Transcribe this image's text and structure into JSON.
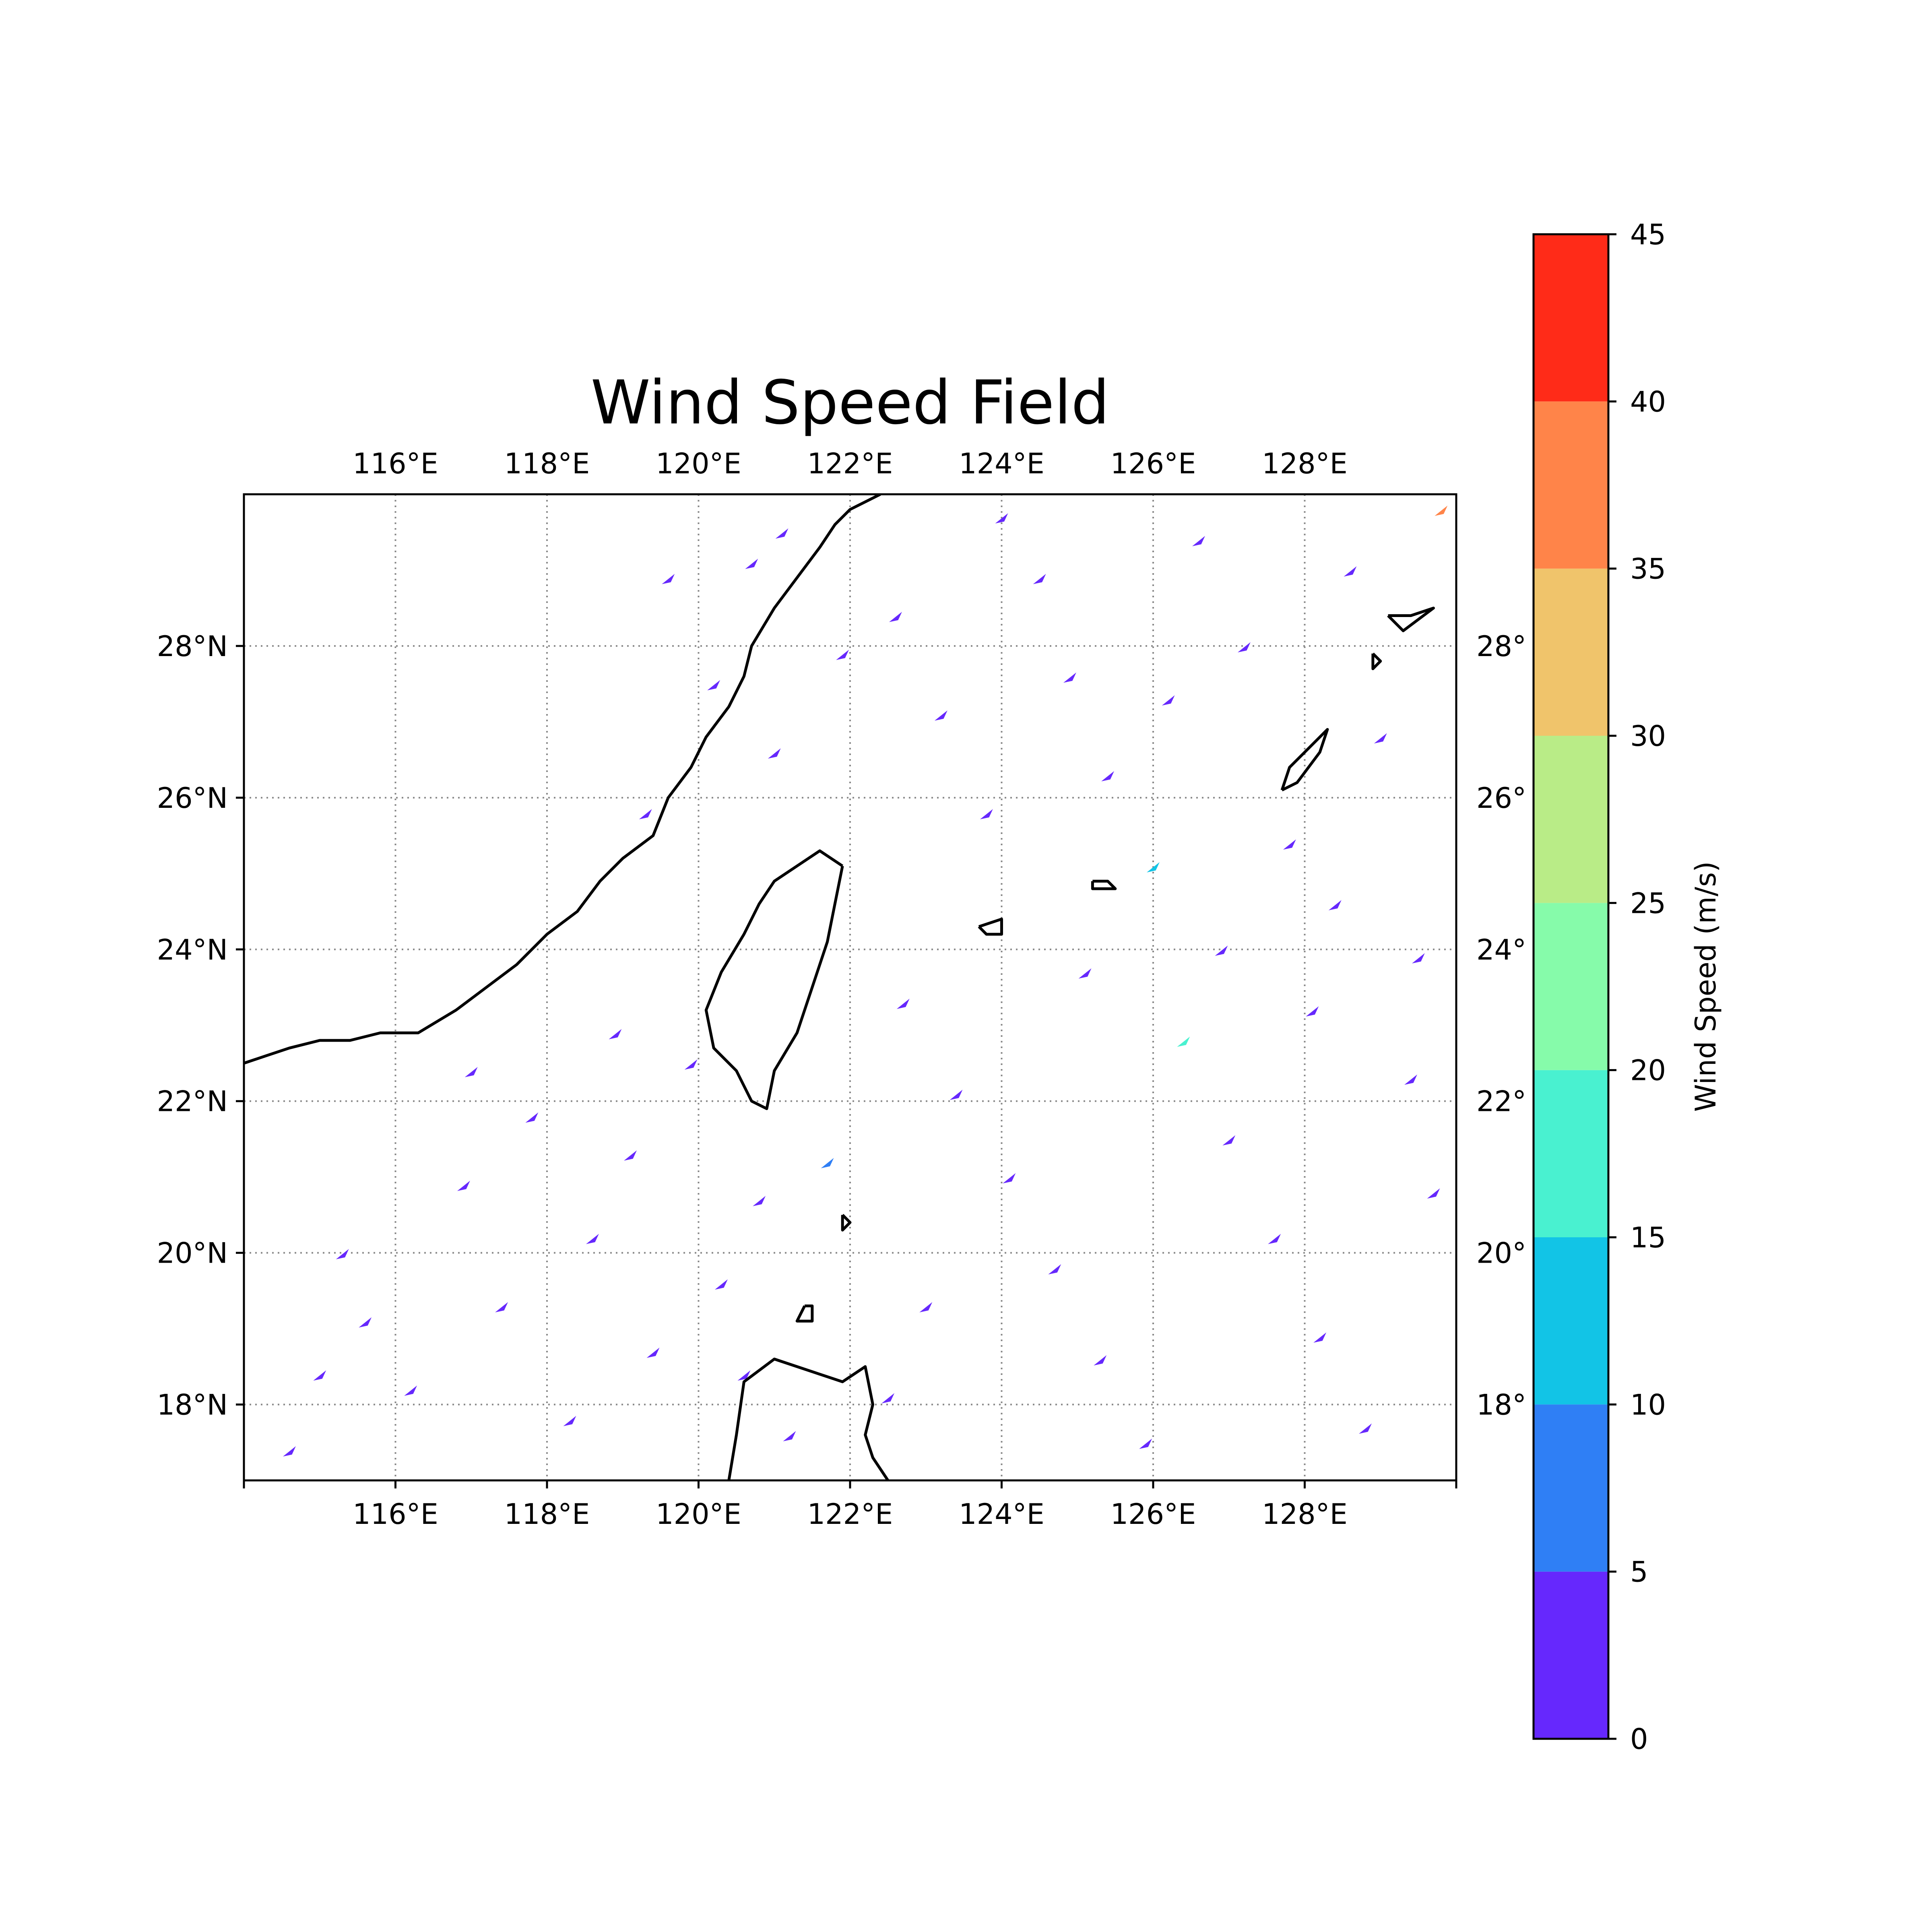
{
  "title": "Wind Speed Field",
  "map": {
    "extent": {
      "lon": [
        114,
        130
      ],
      "lat": [
        17,
        30
      ]
    },
    "lon_ticks": [
      {
        "value": 116,
        "label": "116°E"
      },
      {
        "value": 118,
        "label": "118°E"
      },
      {
        "value": 120,
        "label": "120°E"
      },
      {
        "value": 122,
        "label": "122°E"
      },
      {
        "value": 124,
        "label": "124°E"
      },
      {
        "value": 126,
        "label": "126°E"
      },
      {
        "value": 128,
        "label": "128°E"
      }
    ],
    "lat_ticks": [
      {
        "value": 18,
        "label": "18°N"
      },
      {
        "value": 20,
        "label": "20°N"
      },
      {
        "value": 22,
        "label": "22°N"
      },
      {
        "value": 24,
        "label": "24°N"
      },
      {
        "value": 26,
        "label": "26°N"
      },
      {
        "value": 28,
        "label": "28°N"
      }
    ],
    "lat_ticks_right": [
      {
        "value": 18,
        "label": "18°"
      },
      {
        "value": 20,
        "label": "20°"
      },
      {
        "value": 22,
        "label": "22°"
      },
      {
        "value": 24,
        "label": "24°"
      },
      {
        "value": 26,
        "label": "26°"
      },
      {
        "value": 28,
        "label": "28°"
      }
    ],
    "gridlines": "dotted",
    "coastline_color": "#000000",
    "field_dominant_color": "#6628fd",
    "coastlines": [
      {
        "name": "china-coast",
        "lonlat": [
          [
            114.0,
            22.5
          ],
          [
            114.3,
            22.6
          ],
          [
            114.6,
            22.7
          ],
          [
            115.0,
            22.8
          ],
          [
            115.4,
            22.8
          ],
          [
            115.8,
            22.9
          ],
          [
            116.3,
            22.9
          ],
          [
            116.8,
            23.2
          ],
          [
            117.2,
            23.5
          ],
          [
            117.6,
            23.8
          ],
          [
            118.0,
            24.2
          ],
          [
            118.4,
            24.5
          ],
          [
            118.7,
            24.9
          ],
          [
            119.0,
            25.2
          ],
          [
            119.4,
            25.5
          ],
          [
            119.6,
            26.0
          ],
          [
            119.9,
            26.4
          ],
          [
            120.1,
            26.8
          ],
          [
            120.4,
            27.2
          ],
          [
            120.6,
            27.6
          ],
          [
            120.7,
            28.0
          ],
          [
            121.0,
            28.5
          ],
          [
            121.3,
            28.9
          ],
          [
            121.6,
            29.3
          ],
          [
            121.8,
            29.6
          ],
          [
            122.0,
            29.8
          ],
          [
            122.4,
            30.0
          ]
        ]
      },
      {
        "name": "taiwan",
        "lonlat": [
          [
            121.9,
            25.1
          ],
          [
            121.6,
            25.3
          ],
          [
            121.3,
            25.1
          ],
          [
            121.0,
            24.9
          ],
          [
            120.8,
            24.6
          ],
          [
            120.6,
            24.2
          ],
          [
            120.3,
            23.7
          ],
          [
            120.1,
            23.2
          ],
          [
            120.2,
            22.7
          ],
          [
            120.5,
            22.4
          ],
          [
            120.7,
            22.0
          ],
          [
            120.9,
            21.9
          ],
          [
            121.0,
            22.4
          ],
          [
            121.3,
            22.9
          ],
          [
            121.5,
            23.5
          ],
          [
            121.7,
            24.1
          ],
          [
            121.8,
            24.6
          ],
          [
            121.9,
            25.1
          ]
        ]
      },
      {
        "name": "luzon",
        "lonlat": [
          [
            120.4,
            17.0
          ],
          [
            120.5,
            17.6
          ],
          [
            120.6,
            18.3
          ],
          [
            121.0,
            18.6
          ],
          [
            121.6,
            18.4
          ],
          [
            121.9,
            18.3
          ],
          [
            122.2,
            18.5
          ],
          [
            122.3,
            18.0
          ],
          [
            122.2,
            17.6
          ],
          [
            122.3,
            17.3
          ],
          [
            122.5,
            17.0
          ]
        ]
      },
      {
        "name": "yaeyama-islands",
        "lonlat": [
          [
            123.7,
            24.3
          ],
          [
            124.0,
            24.4
          ],
          [
            124.0,
            24.2
          ],
          [
            123.8,
            24.2
          ],
          [
            123.7,
            24.3
          ]
        ]
      },
      {
        "name": "miyako-island",
        "lonlat": [
          [
            125.2,
            24.9
          ],
          [
            125.4,
            24.9
          ],
          [
            125.5,
            24.8
          ],
          [
            125.2,
            24.8
          ],
          [
            125.2,
            24.9
          ]
        ]
      },
      {
        "name": "okinawa",
        "lonlat": [
          [
            127.7,
            26.1
          ],
          [
            127.8,
            26.4
          ],
          [
            128.0,
            26.6
          ],
          [
            128.3,
            26.9
          ],
          [
            128.2,
            26.6
          ],
          [
            127.9,
            26.2
          ],
          [
            127.7,
            26.1
          ]
        ]
      },
      {
        "name": "amami",
        "lonlat": [
          [
            129.1,
            28.4
          ],
          [
            129.4,
            28.4
          ],
          [
            129.7,
            28.5
          ],
          [
            129.3,
            28.2
          ],
          [
            129.1,
            28.4
          ]
        ]
      },
      {
        "name": "tokunoshima",
        "lonlat": [
          [
            128.9,
            27.9
          ],
          [
            129.0,
            27.8
          ],
          [
            128.9,
            27.7
          ],
          [
            128.9,
            27.9
          ]
        ]
      },
      {
        "name": "batanes",
        "lonlat": [
          [
            121.9,
            20.5
          ],
          [
            122.0,
            20.4
          ],
          [
            121.9,
            20.3
          ],
          [
            121.9,
            20.5
          ]
        ]
      },
      {
        "name": "babuyan",
        "lonlat": [
          [
            121.4,
            19.3
          ],
          [
            121.5,
            19.3
          ],
          [
            121.5,
            19.1
          ],
          [
            121.3,
            19.1
          ],
          [
            121.4,
            19.3
          ]
        ]
      }
    ],
    "wind_marks": [
      {
        "lon": 115.0,
        "lat": 18.4,
        "speed": 2.1
      },
      {
        "lon": 115.6,
        "lat": 19.1,
        "speed": 3.4
      },
      {
        "lon": 116.2,
        "lat": 18.2,
        "speed": 1.6
      },
      {
        "lon": 116.9,
        "lat": 20.9,
        "speed": 2.7
      },
      {
        "lon": 117.4,
        "lat": 19.3,
        "speed": 4.2
      },
      {
        "lon": 117.8,
        "lat": 21.8,
        "speed": 3.0
      },
      {
        "lon": 118.3,
        "lat": 17.8,
        "speed": 2.5
      },
      {
        "lon": 118.6,
        "lat": 20.2,
        "speed": 1.9
      },
      {
        "lon": 119.1,
        "lat": 21.3,
        "speed": 3.8
      },
      {
        "lon": 119.4,
        "lat": 18.7,
        "speed": 4.6
      },
      {
        "lon": 119.9,
        "lat": 22.5,
        "speed": 2.3
      },
      {
        "lon": 120.3,
        "lat": 19.6,
        "speed": 3.1
      },
      {
        "lon": 120.8,
        "lat": 20.7,
        "speed": 1.4
      },
      {
        "lon": 121.2,
        "lat": 17.6,
        "speed": 2.9
      },
      {
        "lon": 119.6,
        "lat": 28.9,
        "speed": 3.5
      },
      {
        "lon": 120.2,
        "lat": 27.5,
        "speed": 2.0
      },
      {
        "lon": 121.0,
        "lat": 26.6,
        "speed": 4.1
      },
      {
        "lon": 121.1,
        "lat": 29.5,
        "speed": 1.8
      },
      {
        "lon": 122.6,
        "lat": 28.4,
        "speed": 3.3
      },
      {
        "lon": 123.2,
        "lat": 27.1,
        "speed": 2.6
      },
      {
        "lon": 123.8,
        "lat": 25.8,
        "speed": 4.4
      },
      {
        "lon": 124.5,
        "lat": 28.9,
        "speed": 1.7
      },
      {
        "lon": 124.9,
        "lat": 27.6,
        "speed": 3.9
      },
      {
        "lon": 125.4,
        "lat": 26.3,
        "speed": 2.4
      },
      {
        "lon": 126.0,
        "lat": 25.1,
        "speed": 11.2
      },
      {
        "lon": 126.6,
        "lat": 29.4,
        "speed": 3.6
      },
      {
        "lon": 127.2,
        "lat": 28.0,
        "speed": 2.2
      },
      {
        "lon": 127.8,
        "lat": 25.4,
        "speed": 4.8
      },
      {
        "lon": 128.4,
        "lat": 24.6,
        "speed": 1.5
      },
      {
        "lon": 129.0,
        "lat": 26.8,
        "speed": 3.2
      },
      {
        "lon": 129.5,
        "lat": 23.9,
        "speed": 2.8
      },
      {
        "lon": 122.7,
        "lat": 23.3,
        "speed": 3.7
      },
      {
        "lon": 123.4,
        "lat": 22.1,
        "speed": 2.1
      },
      {
        "lon": 124.1,
        "lat": 21.0,
        "speed": 4.3
      },
      {
        "lon": 124.7,
        "lat": 19.8,
        "speed": 1.9
      },
      {
        "lon": 125.3,
        "lat": 18.6,
        "speed": 3.4
      },
      {
        "lon": 125.9,
        "lat": 17.5,
        "speed": 2.6
      },
      {
        "lon": 126.4,
        "lat": 22.8,
        "speed": 16.5
      },
      {
        "lon": 127.0,
        "lat": 21.5,
        "speed": 3.0
      },
      {
        "lon": 127.6,
        "lat": 20.2,
        "speed": 2.4
      },
      {
        "lon": 128.2,
        "lat": 18.9,
        "speed": 4.0
      },
      {
        "lon": 128.8,
        "lat": 17.7,
        "speed": 1.6
      },
      {
        "lon": 129.4,
        "lat": 22.3,
        "speed": 3.5
      },
      {
        "lon": 129.7,
        "lat": 20.8,
        "speed": 2.2
      },
      {
        "lon": 126.9,
        "lat": 24.0,
        "speed": 3.9
      },
      {
        "lon": 128.1,
        "lat": 23.2,
        "speed": 2.7
      },
      {
        "lon": 125.1,
        "lat": 23.7,
        "speed": 4.5
      },
      {
        "lon": 123.0,
        "lat": 19.3,
        "speed": 1.8
      },
      {
        "lon": 122.5,
        "lat": 18.1,
        "speed": 3.6
      },
      {
        "lon": 117.0,
        "lat": 22.4,
        "speed": 2.9
      },
      {
        "lon": 115.3,
        "lat": 20.0,
        "speed": 3.3
      },
      {
        "lon": 114.6,
        "lat": 17.4,
        "speed": 2.0
      },
      {
        "lon": 118.9,
        "lat": 22.9,
        "speed": 4.1
      },
      {
        "lon": 120.6,
        "lat": 18.4,
        "speed": 2.5
      },
      {
        "lon": 121.7,
        "lat": 21.2,
        "speed": 7.8
      },
      {
        "lon": 119.3,
        "lat": 25.8,
        "speed": 3.1
      },
      {
        "lon": 120.7,
        "lat": 29.1,
        "speed": 2.4
      },
      {
        "lon": 121.9,
        "lat": 27.9,
        "speed": 3.7
      },
      {
        "lon": 124.0,
        "lat": 29.7,
        "speed": 1.9
      },
      {
        "lon": 126.2,
        "lat": 27.3,
        "speed": 4.2
      },
      {
        "lon": 128.6,
        "lat": 29.0,
        "speed": 3.0
      },
      {
        "lon": 129.8,
        "lat": 29.8,
        "speed": 38.5
      }
    ]
  },
  "colorbar": {
    "label": "Wind Speed (m/s)",
    "levels": [
      {
        "from": 0,
        "to": 5,
        "color": "#6628fd"
      },
      {
        "from": 5,
        "to": 10,
        "color": "#2f7ff5"
      },
      {
        "from": 10,
        "to": 15,
        "color": "#12c4e6"
      },
      {
        "from": 15,
        "to": 20,
        "color": "#49f1d0"
      },
      {
        "from": 20,
        "to": 25,
        "color": "#86fbaa"
      },
      {
        "from": 25,
        "to": 30,
        "color": "#b9ec87"
      },
      {
        "from": 30,
        "to": 35,
        "color": "#f0c46b"
      },
      {
        "from": 35,
        "to": 40,
        "color": "#ff8449"
      },
      {
        "from": 40,
        "to": 45,
        "color": "#ff2b18"
      }
    ],
    "ticks": [
      {
        "value": 0,
        "label": "0"
      },
      {
        "value": 5,
        "label": "5"
      },
      {
        "value": 10,
        "label": "10"
      },
      {
        "value": 15,
        "label": "15"
      },
      {
        "value": 20,
        "label": "20"
      },
      {
        "value": 25,
        "label": "25"
      },
      {
        "value": 30,
        "label": "30"
      },
      {
        "value": 35,
        "label": "35"
      },
      {
        "value": 40,
        "label": "40"
      },
      {
        "value": 45,
        "label": "45"
      }
    ]
  }
}
